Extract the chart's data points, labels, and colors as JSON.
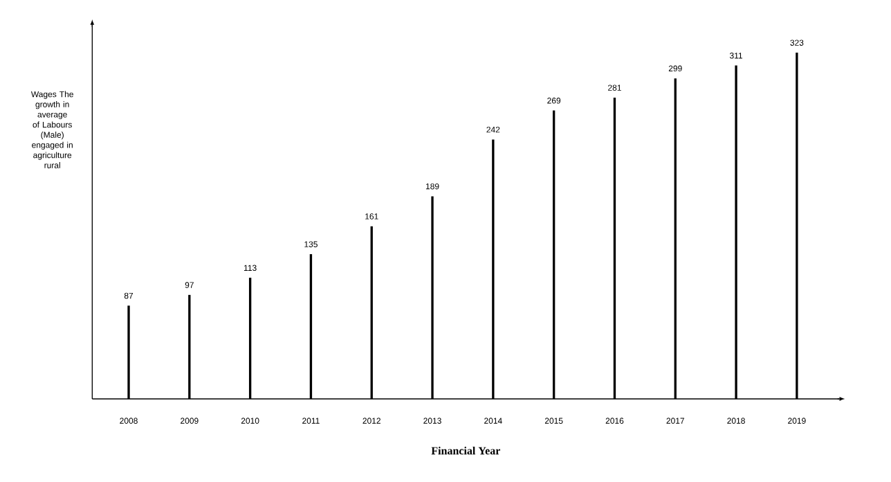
{
  "chart_data": {
    "type": "bar",
    "xlabel": "Financial Year",
    "ylabel": "Wages The growth in average of Labours (Male) engaged in agriculture rural",
    "categories": [
      "2008",
      "2009",
      "2010",
      "2011",
      "2012",
      "2013",
      "2014",
      "2015",
      "2016",
      "2017",
      "2018",
      "2019"
    ],
    "values": [
      87,
      97,
      113,
      135,
      161,
      189,
      242,
      269,
      281,
      299,
      311,
      323
    ],
    "color": "#000000",
    "data_labels": true
  }
}
